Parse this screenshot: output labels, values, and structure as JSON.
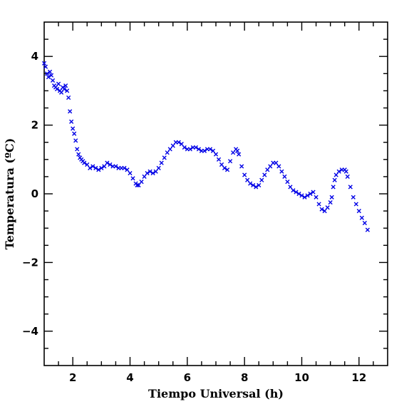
{
  "chart_data": {
    "type": "scatter",
    "title": "",
    "xlabel": "Tiempo Universal (h)",
    "ylabel": "Temperatura (ºC)",
    "xlim": [
      1.0,
      13.0
    ],
    "ylim": [
      -5.0,
      5.0
    ],
    "x_ticks_major": [
      2,
      4,
      6,
      8,
      10,
      12
    ],
    "x_tick_labels": [
      "2",
      "4",
      "6",
      "8",
      "10",
      "12"
    ],
    "y_ticks_major": [
      -4,
      -2,
      0,
      2,
      4
    ],
    "y_tick_labels": [
      "−4",
      "−2",
      "0",
      "2",
      "4"
    ],
    "grid": false,
    "marker": "x",
    "marker_color": "#0000e6",
    "series": [
      {
        "x": [
          1.0,
          1.05,
          1.1,
          1.15,
          1.2,
          1.25,
          1.3,
          1.35,
          1.4,
          1.45,
          1.5,
          1.55,
          1.6,
          1.65,
          1.7,
          1.75,
          1.8,
          1.85,
          1.9,
          1.95,
          2.0,
          2.05,
          2.1,
          2.15,
          2.2,
          2.25,
          2.3,
          2.35,
          2.4,
          2.5,
          2.6,
          2.7,
          2.8,
          2.9,
          3.0,
          3.1,
          3.2,
          3.3,
          3.4,
          3.5,
          3.6,
          3.7,
          3.8,
          3.9,
          4.0,
          4.1,
          4.2,
          4.25,
          4.3,
          4.4,
          4.5,
          4.6,
          4.7,
          4.8,
          4.9,
          5.0,
          5.1,
          5.2,
          5.3,
          5.4,
          5.5,
          5.6,
          5.7,
          5.8,
          5.9,
          6.0,
          6.1,
          6.2,
          6.3,
          6.4,
          6.5,
          6.6,
          6.7,
          6.8,
          6.9,
          7.0,
          7.1,
          7.2,
          7.3,
          7.4,
          7.5,
          7.6,
          7.7,
          7.75,
          7.8,
          7.9,
          8.0,
          8.1,
          8.2,
          8.3,
          8.4,
          8.5,
          8.6,
          8.7,
          8.8,
          8.9,
          9.0,
          9.1,
          9.2,
          9.3,
          9.4,
          9.5,
          9.6,
          9.7,
          9.8,
          9.9,
          10.0,
          10.1,
          10.2,
          10.3,
          10.4,
          10.5,
          10.6,
          10.7,
          10.8,
          10.9,
          11.0,
          11.05,
          11.1,
          11.15,
          11.2,
          11.3,
          11.4,
          11.5,
          11.55,
          11.6,
          11.7,
          11.8,
          11.9,
          12.0,
          12.1,
          12.2,
          12.3
        ],
        "y": [
          3.8,
          3.7,
          3.5,
          3.4,
          3.55,
          3.45,
          3.3,
          3.15,
          3.1,
          3.05,
          3.2,
          3.0,
          2.95,
          3.1,
          3.05,
          3.15,
          3.0,
          2.8,
          2.4,
          2.1,
          1.9,
          1.75,
          1.55,
          1.3,
          1.15,
          1.05,
          1.0,
          0.95,
          0.9,
          0.85,
          0.75,
          0.8,
          0.75,
          0.7,
          0.75,
          0.8,
          0.9,
          0.85,
          0.8,
          0.8,
          0.75,
          0.75,
          0.75,
          0.7,
          0.6,
          0.45,
          0.3,
          0.25,
          0.25,
          0.35,
          0.5,
          0.6,
          0.65,
          0.6,
          0.65,
          0.75,
          0.9,
          1.05,
          1.2,
          1.3,
          1.4,
          1.5,
          1.5,
          1.45,
          1.35,
          1.3,
          1.3,
          1.35,
          1.35,
          1.3,
          1.25,
          1.25,
          1.3,
          1.3,
          1.25,
          1.15,
          1.0,
          0.85,
          0.75,
          0.7,
          0.95,
          1.2,
          1.3,
          1.25,
          1.15,
          0.8,
          0.55,
          0.4,
          0.3,
          0.25,
          0.2,
          0.25,
          0.4,
          0.55,
          0.7,
          0.8,
          0.9,
          0.9,
          0.8,
          0.65,
          0.5,
          0.35,
          0.2,
          0.1,
          0.05,
          0.0,
          -0.05,
          -0.1,
          -0.05,
          0.0,
          0.05,
          -0.1,
          -0.3,
          -0.45,
          -0.5,
          -0.4,
          -0.25,
          -0.1,
          0.2,
          0.4,
          0.55,
          0.65,
          0.7,
          0.7,
          0.65,
          0.5,
          0.2,
          -0.1,
          -0.3,
          -0.5,
          -0.7,
          -0.85,
          -1.05
        ]
      }
    ]
  }
}
